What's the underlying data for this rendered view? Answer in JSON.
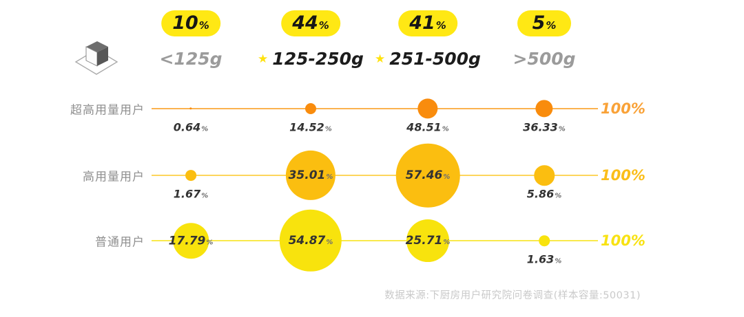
{
  "symbols": {
    "percent": "%",
    "star": "★"
  },
  "header": {
    "columns": [
      {
        "share": "10",
        "range": "<125g",
        "starred": false
      },
      {
        "share": "44",
        "range": "125-250g",
        "starred": true
      },
      {
        "share": "41",
        "range": "251-500g",
        "starred": true
      },
      {
        "share": "5",
        "range": ">500g",
        "starred": false
      }
    ]
  },
  "chart_data": {
    "type": "bubble",
    "x_categories": [
      "<125g",
      "125-250g",
      "251-500g",
      ">500g"
    ],
    "category_share_pct": [
      10,
      44,
      41,
      5
    ],
    "highlighted_categories": [
      "125-250g",
      "251-500g"
    ],
    "value_unit": "%",
    "rows": [
      {
        "label": "超高用量用户",
        "values": [
          0.64,
          14.52,
          48.51,
          36.33
        ],
        "row_total": "100%",
        "bubble_color": "#F98C0D",
        "line_color": "#FBB24F",
        "total_color": "#F9A238"
      },
      {
        "label": "高用量用户",
        "values": [
          1.67,
          35.01,
          57.46,
          5.86
        ],
        "row_total": "100%",
        "bubble_color": "#FBBE10",
        "line_color": "#FDD55C",
        "total_color": "#FBBE1A"
      },
      {
        "label": "普通用户",
        "values": [
          17.79,
          54.87,
          25.71,
          1.63
        ],
        "row_total": "100%",
        "bubble_color": "#F8E30D",
        "line_color": "#F9E94A",
        "total_color": "#F8E213"
      }
    ]
  },
  "footer": {
    "source": "数据来源:下厨房用户研究院问卷调查(样本容量:50031)"
  },
  "colors": {
    "pill_bg": "#FFE814",
    "star": "#FFE20D",
    "muted_text": "#9B9B9B",
    "dark_text": "#1C1C1C",
    "row_label": "#8F8F8F",
    "value_text": "#3A3A3A",
    "footer_text": "#C9C9C9"
  }
}
